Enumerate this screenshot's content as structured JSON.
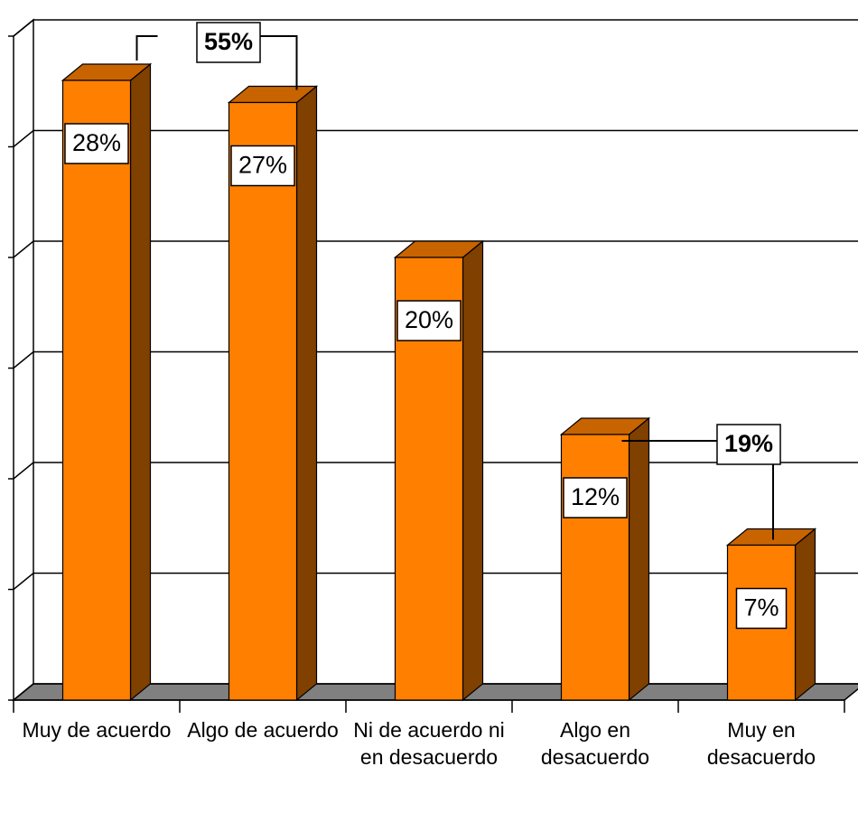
{
  "chart_data": {
    "type": "bar3d",
    "categories": [
      "Muy de acuerdo",
      "Algo de acuerdo",
      "Ni de acuerdo ni en desacuerdo",
      "Algo en desacuerdo",
      "Muy en desacuerdo"
    ],
    "values": [
      28,
      27,
      20,
      12,
      7
    ],
    "value_labels": [
      "28%",
      "27%",
      "20%",
      "12%",
      "7%"
    ],
    "color": "#ff8000",
    "ylim": [
      0,
      30
    ],
    "yticks": [
      0,
      5,
      10,
      15,
      20,
      25,
      30
    ],
    "grid": true,
    "annotations": [
      "55%",
      "19%"
    ]
  }
}
